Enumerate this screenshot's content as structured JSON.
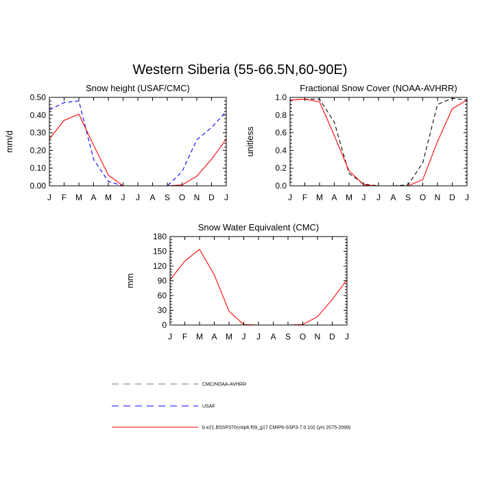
{
  "figure_title": "Western Siberia (55-66.5N,60-90E)",
  "months": [
    "J",
    "F",
    "M",
    "A",
    "M",
    "J",
    "J",
    "A",
    "S",
    "O",
    "N",
    "D",
    "J"
  ],
  "legend": [
    {
      "label": "CMC/NOAA-AVHRR",
      "color": "#000000",
      "dash": "long"
    },
    {
      "label": "USAF",
      "color": "#0000ff",
      "dash": "long"
    },
    {
      "label": "b.e21.BSSP370cmip6.f09_g17.CMIP6-SSP3-7.0.102 (yrs 2075-2099)",
      "color": "#ff0000",
      "dash": "solid"
    }
  ],
  "chart_data": [
    {
      "type": "line",
      "title": "Snow height (USAF/CMC)",
      "ylabel": "mm/d",
      "ylim": [
        0,
        0.5
      ],
      "yticks": [
        "0.00",
        "0.10",
        "0.20",
        "0.30",
        "0.40",
        "0.50"
      ],
      "categories": [
        "J",
        "F",
        "M",
        "A",
        "M",
        "J",
        "J",
        "A",
        "S",
        "O",
        "N",
        "D",
        "J"
      ],
      "series": [
        {
          "color": "#0000ff",
          "dash": "dashed",
          "values": [
            0.43,
            0.47,
            0.48,
            0.15,
            0.025,
            0.0,
            0.0,
            0.0,
            0.0,
            0.08,
            0.26,
            0.33,
            0.42
          ]
        },
        {
          "color": "#ff0000",
          "dash": "solid",
          "values": [
            0.265,
            0.37,
            0.405,
            0.23,
            0.06,
            0.0,
            0.0,
            0.0,
            0.0,
            0.005,
            0.055,
            0.15,
            0.265
          ]
        }
      ]
    },
    {
      "type": "line",
      "title": "Fractional Snow Cover (NOAA-AVHRR)",
      "ylabel": "unitless",
      "ylim": [
        0,
        1.0
      ],
      "yticks": [
        "0.0",
        "0.2",
        "0.4",
        "0.6",
        "0.8",
        "1.0"
      ],
      "categories": [
        "J",
        "F",
        "M",
        "A",
        "M",
        "J",
        "J",
        "A",
        "S",
        "O",
        "N",
        "D",
        "J"
      ],
      "series": [
        {
          "color": "#000000",
          "dash": "dashed",
          "values": [
            0.97,
            0.98,
            0.98,
            0.72,
            0.14,
            0.02,
            0.0,
            0.0,
            0.01,
            0.26,
            0.92,
            0.99,
            0.97
          ]
        },
        {
          "color": "#ff0000",
          "dash": "solid",
          "values": [
            0.97,
            0.98,
            0.95,
            0.57,
            0.17,
            0.01,
            0.0,
            0.0,
            0.0,
            0.07,
            0.5,
            0.87,
            0.97
          ]
        }
      ]
    },
    {
      "type": "line",
      "title": "Snow Water Equivalent (CMC)",
      "ylabel": "mm",
      "ylim": [
        0,
        180
      ],
      "yticks": [
        "0",
        "30",
        "60",
        "90",
        "120",
        "150",
        "180"
      ],
      "categories": [
        "J",
        "F",
        "M",
        "A",
        "M",
        "J",
        "J",
        "A",
        "S",
        "O",
        "N",
        "D",
        "J"
      ],
      "series": [
        {
          "color": "#000000",
          "dash": "dashed",
          "values": [
            0,
            0,
            0,
            0,
            0,
            0,
            0,
            0,
            0,
            0,
            0,
            0,
            0
          ]
        },
        {
          "color": "#ff0000",
          "dash": "solid",
          "values": [
            92,
            130,
            154,
            102,
            28,
            1,
            0,
            0,
            0,
            1,
            17,
            52,
            92
          ]
        }
      ]
    }
  ]
}
